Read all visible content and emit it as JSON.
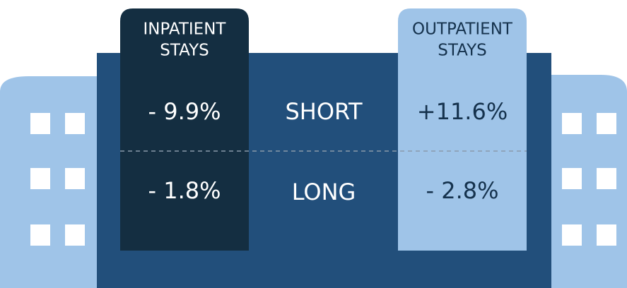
{
  "columns": [
    {
      "header": [
        "INPATIENT",
        "STAYS"
      ]
    },
    {
      "header": [
        "OUTPATIENT",
        "STAYS"
      ]
    }
  ],
  "rows": [
    {
      "label": "SHORT",
      "values": [
        "- 9.9%",
        "+11.6%"
      ]
    },
    {
      "label": "LONG",
      "values": [
        "- 1.8%",
        "- 2.8%"
      ]
    }
  ]
}
